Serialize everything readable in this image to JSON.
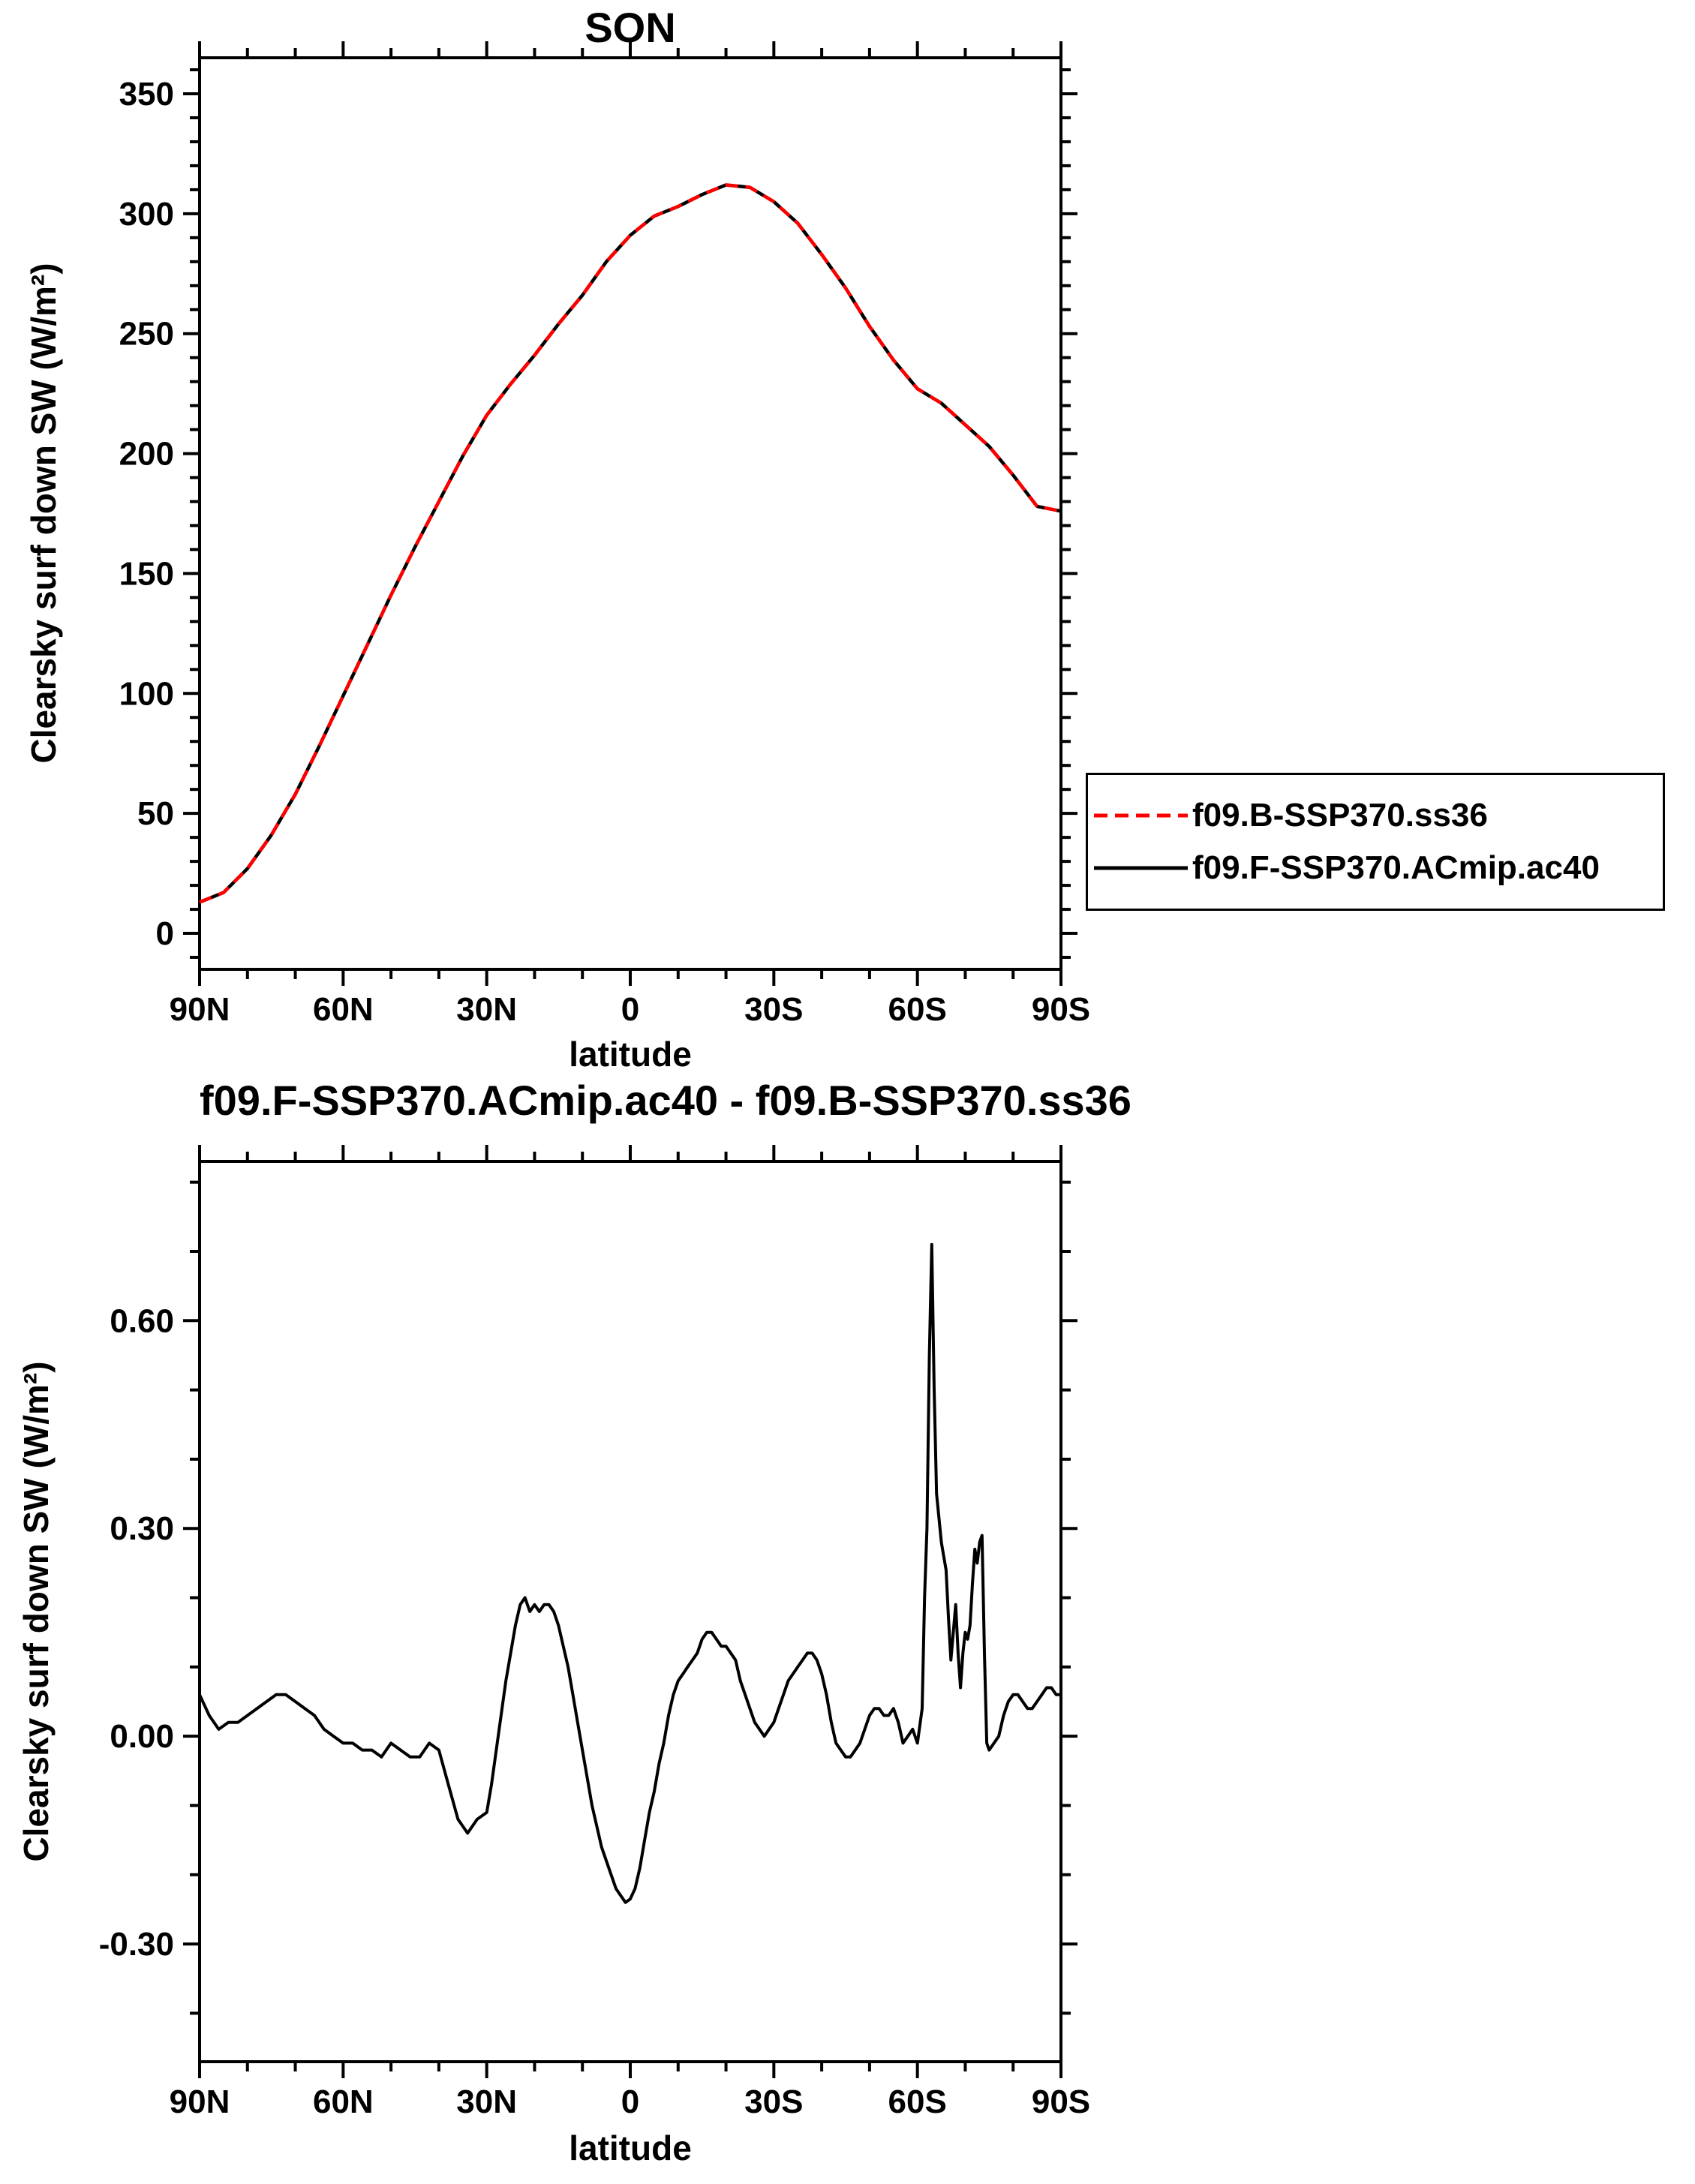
{
  "accent_colors": {
    "series_red": "#ff0000",
    "series_black": "#000000",
    "background": "#ffffff"
  },
  "chart_data": [
    {
      "id": "clearsky-sw-by-latitude",
      "type": "line",
      "title": "SON",
      "xlabel": "latitude",
      "ylabel": "Clearsky surf down SW (W/m²)",
      "xlim": [
        90,
        -90
      ],
      "ylim": [
        -15,
        365
      ],
      "grid": false,
      "xticks": [
        {
          "v": 90,
          "label": "90N"
        },
        {
          "v": 60,
          "label": "60N"
        },
        {
          "v": 30,
          "label": "30N"
        },
        {
          "v": 0,
          "label": "0"
        },
        {
          "v": -30,
          "label": "30S"
        },
        {
          "v": -60,
          "label": "60S"
        },
        {
          "v": -90,
          "label": "90S"
        }
      ],
      "yticks": [
        {
          "v": 0,
          "label": "0"
        },
        {
          "v": 50,
          "label": "50"
        },
        {
          "v": 100,
          "label": "100"
        },
        {
          "v": 150,
          "label": "150"
        },
        {
          "v": 200,
          "label": "200"
        },
        {
          "v": 250,
          "label": "250"
        },
        {
          "v": 300,
          "label": "300"
        },
        {
          "v": 350,
          "label": "350"
        }
      ],
      "minor_x_step": 10,
      "minor_y_step": 10,
      "series": [
        {
          "name": "f09.B-SSP370.ss36",
          "color": "#ff0000",
          "line_style": "dashed",
          "points": [
            [
              90,
              13
            ],
            [
              85,
              17
            ],
            [
              80,
              27
            ],
            [
              75,
              41
            ],
            [
              70,
              58
            ],
            [
              65,
              78
            ],
            [
              60,
              99
            ],
            [
              55,
              120
            ],
            [
              50,
              141
            ],
            [
              45,
              161
            ],
            [
              40,
              180
            ],
            [
              35,
              199
            ],
            [
              30,
              216
            ],
            [
              25,
              229
            ],
            [
              20,
              241
            ],
            [
              15,
              254
            ],
            [
              10,
              266
            ],
            [
              5,
              280
            ],
            [
              0,
              291
            ],
            [
              -5,
              299
            ],
            [
              -10,
              303
            ],
            [
              -15,
              308
            ],
            [
              -20,
              312
            ],
            [
              -25,
              311
            ],
            [
              -30,
              305
            ],
            [
              -35,
              296
            ],
            [
              -40,
              283
            ],
            [
              -45,
              269
            ],
            [
              -50,
              253
            ],
            [
              -55,
              239
            ],
            [
              -60,
              227
            ],
            [
              -65,
              221
            ],
            [
              -70,
              212
            ],
            [
              -75,
              203
            ],
            [
              -80,
              191
            ],
            [
              -85,
              178
            ],
            [
              -90,
              176
            ]
          ]
        },
        {
          "name": "f09.F-SSP370.ACmip.ac40",
          "color": "#000000",
          "line_style": "solid",
          "points": [
            [
              90,
              13
            ],
            [
              85,
              17
            ],
            [
              80,
              27
            ],
            [
              75,
              41
            ],
            [
              70,
              58
            ],
            [
              65,
              78
            ],
            [
              60,
              99
            ],
            [
              55,
              120
            ],
            [
              50,
              141
            ],
            [
              45,
              161
            ],
            [
              40,
              180
            ],
            [
              35,
              199
            ],
            [
              30,
              216
            ],
            [
              25,
              229
            ],
            [
              20,
              241
            ],
            [
              15,
              254
            ],
            [
              10,
              266
            ],
            [
              5,
              280
            ],
            [
              0,
              291
            ],
            [
              -5,
              299
            ],
            [
              -10,
              303
            ],
            [
              -15,
              308
            ],
            [
              -20,
              312
            ],
            [
              -25,
              311
            ],
            [
              -30,
              305
            ],
            [
              -35,
              296
            ],
            [
              -40,
              283
            ],
            [
              -45,
              269
            ],
            [
              -50,
              253
            ],
            [
              -55,
              239
            ],
            [
              -60,
              227
            ],
            [
              -65,
              221
            ],
            [
              -70,
              212
            ],
            [
              -75,
              203
            ],
            [
              -80,
              191
            ],
            [
              -85,
              178
            ],
            [
              -90,
              176
            ]
          ]
        }
      ],
      "legend": {
        "position": "outside-right",
        "entries": [
          {
            "label": "f09.B-SSP370.ss36",
            "color": "#ff0000",
            "line_style": "dashed"
          },
          {
            "label": "f09.F-SSP370.ACmip.ac40",
            "color": "#000000",
            "line_style": "solid"
          }
        ]
      }
    },
    {
      "id": "difference-clearsky-sw",
      "type": "line",
      "title": "f09.F-SSP370.ACmip.ac40 - f09.B-SSP370.ss36",
      "xlabel": "latitude",
      "ylabel": "Clearsky surf down SW (W/m²)",
      "xlim": [
        90,
        -90
      ],
      "ylim": [
        -0.47,
        0.83
      ],
      "grid": false,
      "xticks": [
        {
          "v": 90,
          "label": "90N"
        },
        {
          "v": 60,
          "label": "60N"
        },
        {
          "v": 30,
          "label": "30N"
        },
        {
          "v": 0,
          "label": "0"
        },
        {
          "v": -30,
          "label": "30S"
        },
        {
          "v": -60,
          "label": "60S"
        },
        {
          "v": -90,
          "label": "90S"
        }
      ],
      "yticks": [
        {
          "v": -0.3,
          "label": "-0.30"
        },
        {
          "v": 0,
          "label": "0.00"
        },
        {
          "v": 0.3,
          "label": "0.30"
        },
        {
          "v": 0.6,
          "label": "0.60"
        }
      ],
      "minor_x_step": 10,
      "minor_y_step": 0.1,
      "series": [
        {
          "name": "f09.F-SSP370.ACmip.ac40 minus f09.B-SSP370.ss36",
          "color": "#000000",
          "line_style": "solid",
          "points": [
            [
              90,
              0.06
            ],
            [
              88,
              0.03
            ],
            [
              86,
              0.01
            ],
            [
              84,
              0.02
            ],
            [
              82,
              0.02
            ],
            [
              80,
              0.03
            ],
            [
              78,
              0.04
            ],
            [
              76,
              0.05
            ],
            [
              74,
              0.06
            ],
            [
              72,
              0.06
            ],
            [
              70,
              0.05
            ],
            [
              68,
              0.04
            ],
            [
              66,
              0.03
            ],
            [
              64,
              0.01
            ],
            [
              62,
              0
            ],
            [
              60,
              -0.01
            ],
            [
              58,
              -0.01
            ],
            [
              56,
              -0.02
            ],
            [
              54,
              -0.02
            ],
            [
              52,
              -0.03
            ],
            [
              50,
              -0.01
            ],
            [
              48,
              -0.02
            ],
            [
              46,
              -0.03
            ],
            [
              44,
              -0.03
            ],
            [
              42,
              -0.01
            ],
            [
              40,
              -0.02
            ],
            [
              38,
              -0.07
            ],
            [
              36,
              -0.12
            ],
            [
              34,
              -0.14
            ],
            [
              32,
              -0.12
            ],
            [
              30,
              -0.11
            ],
            [
              29,
              -0.07
            ],
            [
              28,
              -0.02
            ],
            [
              27,
              0.03
            ],
            [
              26,
              0.08
            ],
            [
              25,
              0.12
            ],
            [
              24,
              0.16
            ],
            [
              23,
              0.19
            ],
            [
              22,
              0.2
            ],
            [
              21,
              0.18
            ],
            [
              20,
              0.19
            ],
            [
              19,
              0.18
            ],
            [
              18,
              0.19
            ],
            [
              17,
              0.19
            ],
            [
              16,
              0.18
            ],
            [
              15,
              0.16
            ],
            [
              14,
              0.13
            ],
            [
              13,
              0.1
            ],
            [
              12,
              0.06
            ],
            [
              11,
              0.02
            ],
            [
              10,
              -0.02
            ],
            [
              9,
              -0.06
            ],
            [
              8,
              -0.1
            ],
            [
              7,
              -0.13
            ],
            [
              6,
              -0.16
            ],
            [
              5,
              -0.18
            ],
            [
              4,
              -0.2
            ],
            [
              3,
              -0.22
            ],
            [
              2,
              -0.23
            ],
            [
              1,
              -0.24
            ],
            [
              0,
              -0.235
            ],
            [
              -1,
              -0.22
            ],
            [
              -2,
              -0.19
            ],
            [
              -3,
              -0.15
            ],
            [
              -4,
              -0.11
            ],
            [
              -5,
              -0.08
            ],
            [
              -6,
              -0.04
            ],
            [
              -7,
              -0.01
            ],
            [
              -8,
              0.03
            ],
            [
              -9,
              0.06
            ],
            [
              -10,
              0.08
            ],
            [
              -11,
              0.09
            ],
            [
              -12,
              0.1
            ],
            [
              -13,
              0.11
            ],
            [
              -14,
              0.12
            ],
            [
              -15,
              0.14
            ],
            [
              -16,
              0.15
            ],
            [
              -17,
              0.15
            ],
            [
              -18,
              0.14
            ],
            [
              -19,
              0.13
            ],
            [
              -20,
              0.13
            ],
            [
              -21,
              0.12
            ],
            [
              -22,
              0.11
            ],
            [
              -23,
              0.08
            ],
            [
              -24,
              0.06
            ],
            [
              -25,
              0.04
            ],
            [
              -26,
              0.02
            ],
            [
              -27,
              0.01
            ],
            [
              -28,
              0
            ],
            [
              -29,
              0.01
            ],
            [
              -30,
              0.02
            ],
            [
              -31,
              0.04
            ],
            [
              -32,
              0.06
            ],
            [
              -33,
              0.08
            ],
            [
              -34,
              0.09
            ],
            [
              -35,
              0.1
            ],
            [
              -36,
              0.11
            ],
            [
              -37,
              0.12
            ],
            [
              -38,
              0.12
            ],
            [
              -39,
              0.11
            ],
            [
              -40,
              0.09
            ],
            [
              -41,
              0.06
            ],
            [
              -42,
              0.02
            ],
            [
              -43,
              -0.01
            ],
            [
              -44,
              -0.02
            ],
            [
              -45,
              -0.03
            ],
            [
              -46,
              -0.03
            ],
            [
              -47,
              -0.02
            ],
            [
              -48,
              -0.01
            ],
            [
              -49,
              0.01
            ],
            [
              -50,
              0.03
            ],
            [
              -51,
              0.04
            ],
            [
              -52,
              0.04
            ],
            [
              -53,
              0.03
            ],
            [
              -54,
              0.03
            ],
            [
              -55,
              0.04
            ],
            [
              -56,
              0.02
            ],
            [
              -57,
              -0.01
            ],
            [
              -58,
              0
            ],
            [
              -59,
              0.01
            ],
            [
              -60,
              -0.01
            ],
            [
              -61,
              0.04
            ],
            [
              -61.5,
              0.2
            ],
            [
              -62,
              0.3
            ],
            [
              -62.5,
              0.55
            ],
            [
              -63,
              0.71
            ],
            [
              -63.5,
              0.5
            ],
            [
              -64,
              0.35
            ],
            [
              -65,
              0.28
            ],
            [
              -65.5,
              0.26
            ],
            [
              -66,
              0.24
            ],
            [
              -66.5,
              0.17
            ],
            [
              -67,
              0.11
            ],
            [
              -67.5,
              0.15
            ],
            [
              -68,
              0.19
            ],
            [
              -68.5,
              0.12
            ],
            [
              -69,
              0.07
            ],
            [
              -69.5,
              0.12
            ],
            [
              -70,
              0.15
            ],
            [
              -70.5,
              0.14
            ],
            [
              -71,
              0.16
            ],
            [
              -71.5,
              0.22
            ],
            [
              -72,
              0.27
            ],
            [
              -72.5,
              0.25
            ],
            [
              -73,
              0.28
            ],
            [
              -73.5,
              0.29
            ],
            [
              -74,
              0.12
            ],
            [
              -74.5,
              -0.01
            ],
            [
              -75,
              -0.02
            ],
            [
              -76,
              -0.01
            ],
            [
              -77,
              0
            ],
            [
              -78,
              0.03
            ],
            [
              -79,
              0.05
            ],
            [
              -80,
              0.06
            ],
            [
              -81,
              0.06
            ],
            [
              -82,
              0.05
            ],
            [
              -83,
              0.04
            ],
            [
              -84,
              0.04
            ],
            [
              -85,
              0.05
            ],
            [
              -86,
              0.06
            ],
            [
              -87,
              0.07
            ],
            [
              -88,
              0.07
            ],
            [
              -89,
              0.06
            ],
            [
              -90,
              0.06
            ]
          ]
        }
      ],
      "legend": null
    }
  ]
}
